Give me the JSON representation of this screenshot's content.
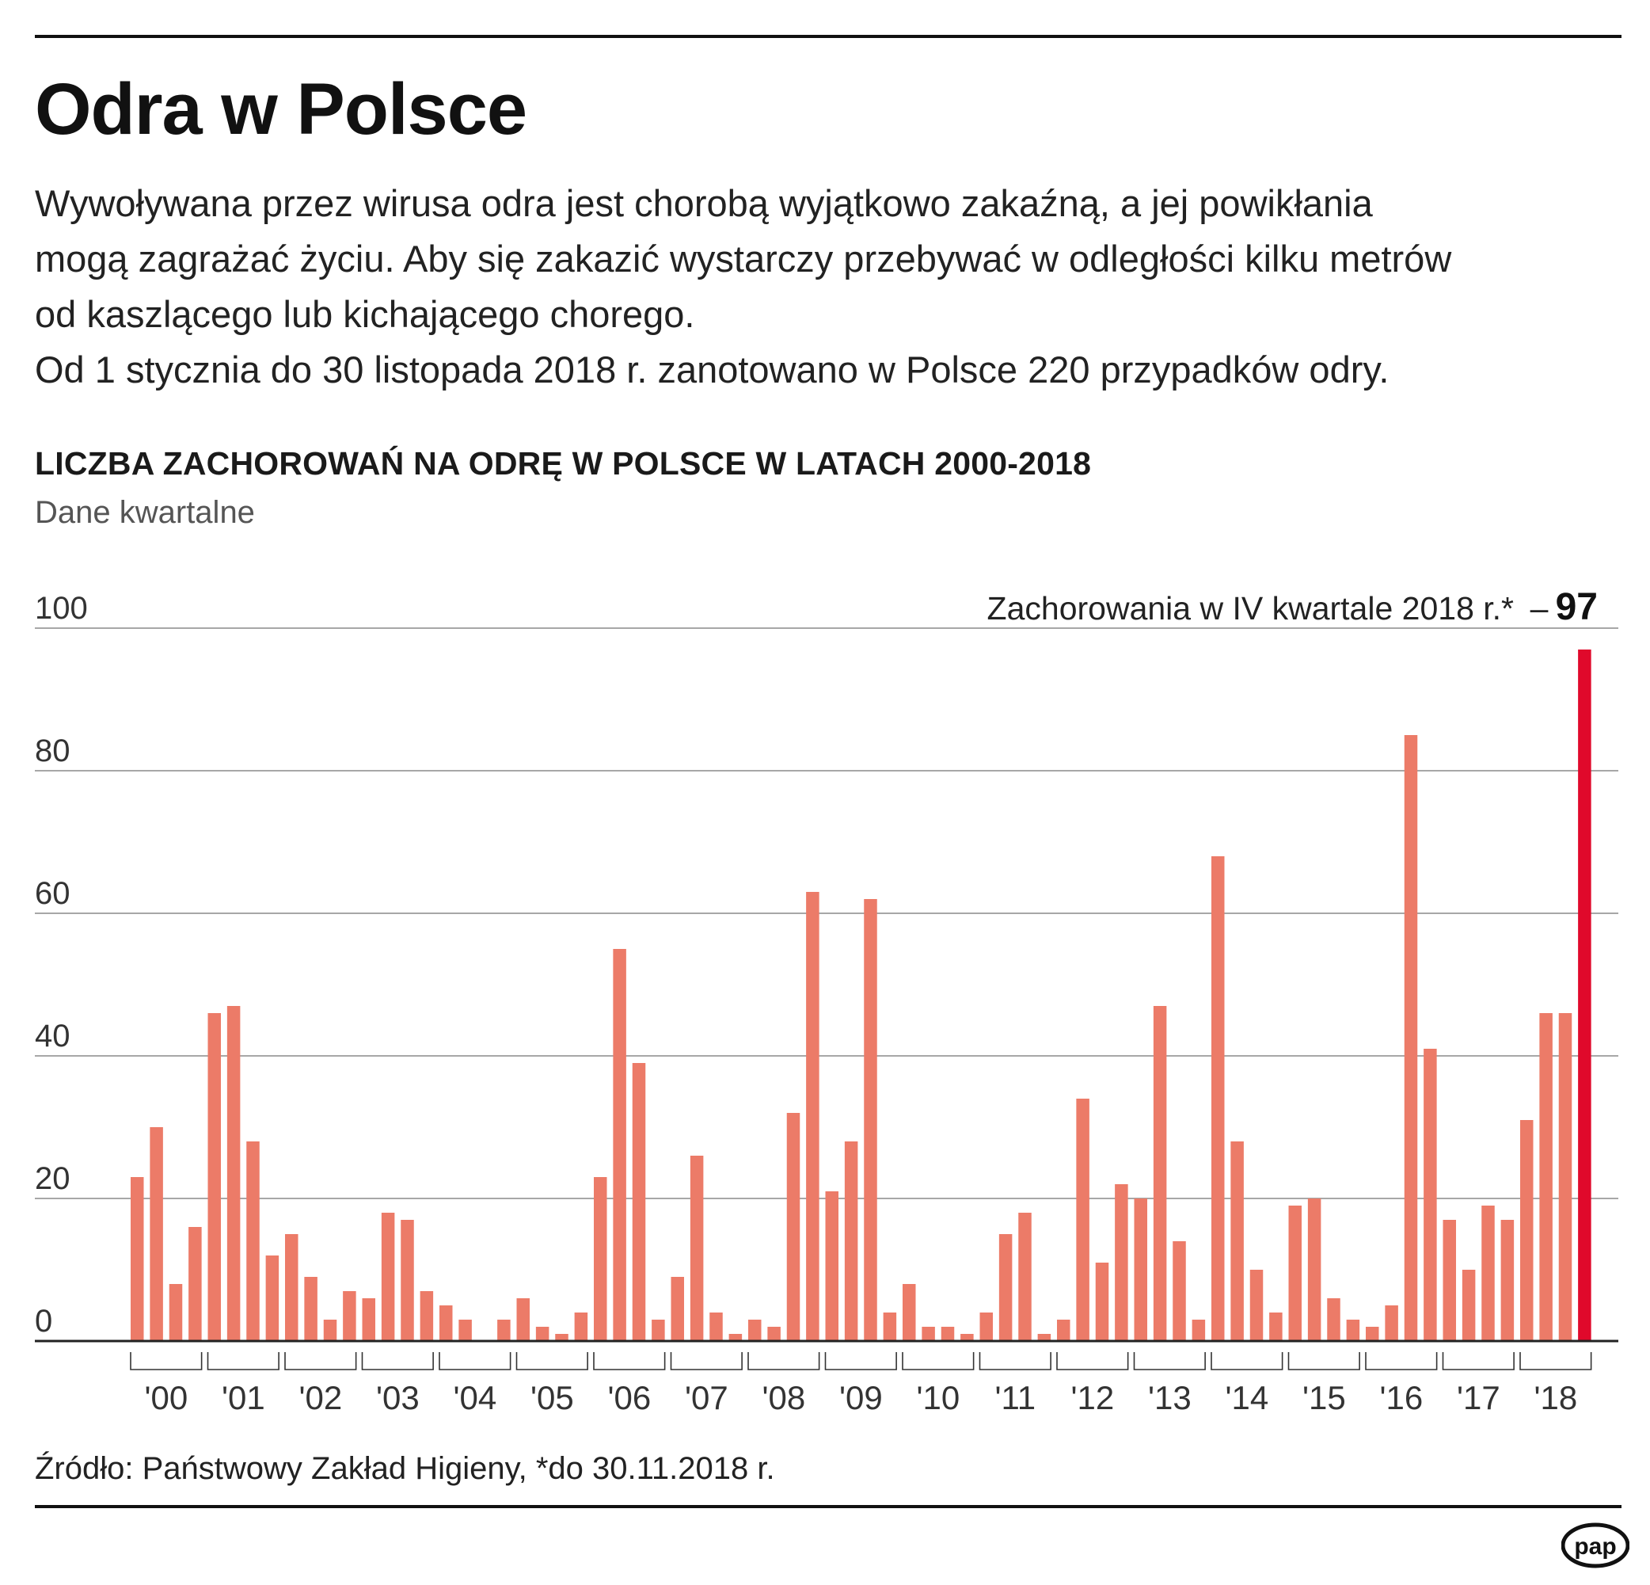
{
  "header": {
    "title": "Odra w Polsce",
    "lead_lines": [
      "Wywoływana przez wirusa odra jest chorobą wyjątkowo zakaźną, a jej powikłania",
      "mogą zagrażać życiu. Aby się zakazić wystarczy przebywać w odległości kilku metrów",
      "od kaszlącego lub kichającego chorego.",
      "Od 1 stycznia do 30 listopada 2018 r. zanotowano w Polsce 220 przypadków odry."
    ]
  },
  "chart_data": {
    "type": "bar",
    "title": "LICZBA ZACHOROWAŃ NA ODRĘ W POLSCE W LATACH 2000-2018",
    "subtitle": "Dane kwartalne",
    "ylim": [
      0,
      100
    ],
    "yticks": [
      0,
      20,
      40,
      60,
      80,
      100
    ],
    "grid": true,
    "xlabel": "",
    "ylabel": "",
    "year_labels": [
      "'00",
      "'01",
      "'02",
      "'03",
      "'04",
      "'05",
      "'06",
      "'07",
      "'08",
      "'09",
      "'10",
      "'11",
      "'12",
      "'13",
      "'14",
      "'15",
      "'16",
      "'17",
      "'18"
    ],
    "values": [
      23,
      30,
      8,
      16,
      46,
      47,
      28,
      12,
      15,
      9,
      3,
      7,
      6,
      18,
      17,
      7,
      5,
      3,
      0,
      3,
      6,
      2,
      1,
      4,
      23,
      55,
      39,
      3,
      9,
      26,
      4,
      1,
      3,
      2,
      32,
      63,
      21,
      28,
      62,
      4,
      8,
      2,
      2,
      1,
      4,
      15,
      18,
      1,
      3,
      34,
      11,
      22,
      20,
      47,
      14,
      3,
      68,
      28,
      10,
      4,
      19,
      20,
      6,
      3,
      2,
      5,
      85,
      41,
      17,
      10,
      19,
      17,
      31,
      46,
      46,
      97
    ],
    "highlight_index": 75,
    "bar_color": "#ec7b68",
    "highlight_color": "#e0092b",
    "annotation": {
      "text": "Zachorowania w IV kwartale 2018 r.*",
      "dash": "–",
      "value": "97"
    }
  },
  "footer": {
    "source": "Źródło: Państwowy Zakład Higieny, *do 30.11.2018 r.",
    "logo_text": "pap"
  }
}
